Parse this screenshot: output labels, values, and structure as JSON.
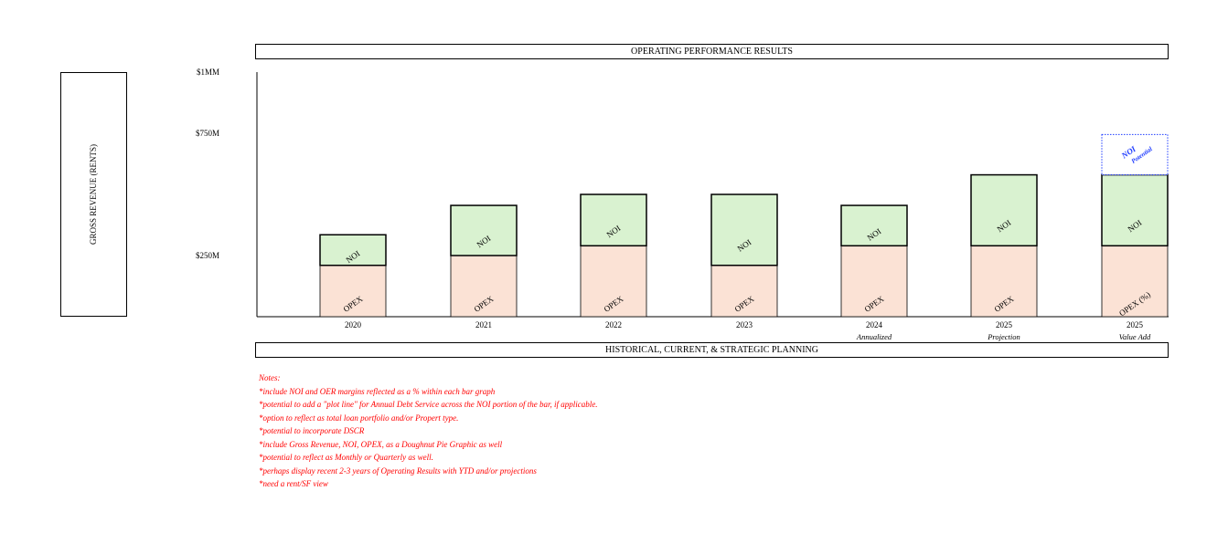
{
  "header": {
    "title": "OPERATING PERFORMANCE RESULTS"
  },
  "footer": {
    "title": "HISTORICAL, CURRENT, & STRATEGIC PLANNING"
  },
  "side_label": "GROSS REVENUE (RENTS)",
  "chart_data": {
    "type": "bar",
    "stacked": true,
    "categories": [
      "2020",
      "2021",
      "2022",
      "2023",
      "2024",
      "2025",
      "2025"
    ],
    "sublabels": [
      "",
      "",
      "",
      "",
      "Annualized",
      "Projection",
      "Value Add"
    ],
    "y_ticks": [
      {
        "value": 250,
        "label": "$250M"
      },
      {
        "value": 750,
        "label": "$750M"
      },
      {
        "value": 1000,
        "label": "$1MM"
      }
    ],
    "ylim": [
      0,
      1000
    ],
    "series": [
      {
        "name": "OPEX",
        "segment_labels": [
          "OPEX",
          "OPEX",
          "OPEX",
          "OPEX",
          "OPEX",
          "OPEX",
          "OPEX (%)"
        ],
        "values": [
          210,
          250,
          290,
          210,
          290,
          290,
          290
        ],
        "color": "#fbe2d5"
      },
      {
        "name": "NOI",
        "segment_labels": [
          "NOI",
          "NOI",
          "NOI",
          "NOI",
          "NOI",
          "NOI",
          "NOI"
        ],
        "values": [
          125,
          205,
          210,
          290,
          165,
          290,
          290
        ],
        "color": "#d9f2d0"
      },
      {
        "name": "NOI Potential",
        "segment_labels": [
          "",
          "",
          "",
          "",
          "",
          "",
          "NOI Potential"
        ],
        "values": [
          0,
          0,
          0,
          0,
          0,
          0,
          165
        ],
        "color": "#ffffff",
        "style": "dotted-blue"
      }
    ],
    "grid": false,
    "legend": "none"
  },
  "notes": {
    "heading": "Notes:",
    "items": [
      "*include NOI and OER margins reflected as a % within each bar graph",
      "*potential to add a \"plot line\" for Annual Debt Service across the NOI portion of the bar, if applicable.",
      "*option to reflect as total loan portfolio and/or Propert type.",
      "*potential to incorporate DSCR",
      "*include Gross Revenue, NOI, OPEX, as a Doughnut Pie Graphic as well",
      "*potential to reflect as Monthly or Quarterly as well.",
      "*perhaps display recent 2-3 years of Operating Results with YTD and/or projections",
      "*need a rent/SF view"
    ]
  }
}
